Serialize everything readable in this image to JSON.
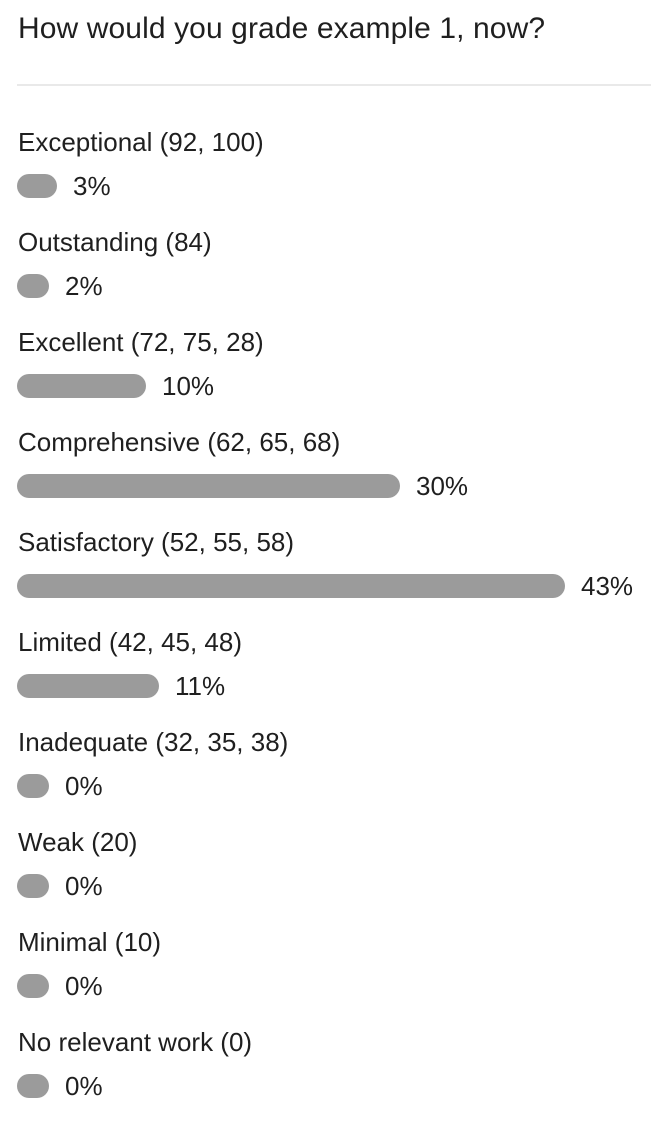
{
  "poll": {
    "question": "How would you grade example 1, now?",
    "bar_color": "#9b9b9b",
    "options": [
      {
        "label": "Exceptional (92, 100)",
        "percent": 3,
        "percent_text": "3%"
      },
      {
        "label": "Outstanding (84)",
        "percent": 2,
        "percent_text": "2%"
      },
      {
        "label": "Excellent (72, 75, 28)",
        "percent": 10,
        "percent_text": "10%"
      },
      {
        "label": "Comprehensive (62, 65, 68)",
        "percent": 30,
        "percent_text": "30%"
      },
      {
        "label": "Satisfactory (52, 55, 58)",
        "percent": 43,
        "percent_text": "43%"
      },
      {
        "label": "Limited (42, 45, 48)",
        "percent": 11,
        "percent_text": "11%"
      },
      {
        "label": "Inadequate (32, 35, 38)",
        "percent": 0,
        "percent_text": "0%"
      },
      {
        "label": "Weak (20)",
        "percent": 0,
        "percent_text": "0%"
      },
      {
        "label": "Minimal (10)",
        "percent": 0,
        "percent_text": "0%"
      },
      {
        "label": "No relevant work (0)",
        "percent": 0,
        "percent_text": "0%"
      }
    ]
  }
}
